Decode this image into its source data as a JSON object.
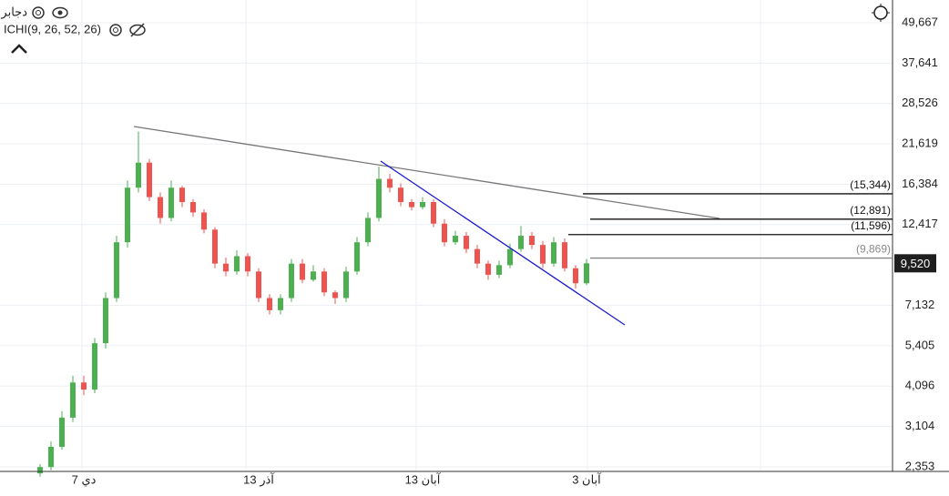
{
  "header": {
    "symbol": "دجابر",
    "indicator": "ICHI(9, 26, 52, 26)"
  },
  "chart_data": {
    "type": "candlestick",
    "log_scale": true,
    "grid": true,
    "up_color": "#4caf50",
    "down_color": "#ef5350",
    "categories": [
      null,
      null,
      null,
      null,
      "دي 7",
      null,
      null,
      null,
      null,
      null,
      null,
      null,
      null,
      null,
      null,
      null,
      null,
      null,
      null,
      null,
      "آذر 13",
      null,
      null,
      null,
      null,
      null,
      null,
      null,
      null,
      null,
      null,
      null,
      null,
      null,
      null,
      "آبان 13",
      null,
      null,
      null,
      null,
      null,
      null,
      null,
      null,
      null,
      null,
      null,
      null,
      null,
      null,
      "آبان 3"
    ],
    "open": [
      2250,
      2350,
      2700,
      3300,
      4200,
      4000,
      5500,
      7500,
      11000,
      16000,
      19000,
      15000,
      13000,
      16000,
      14500,
      13500,
      12000,
      9500,
      9000,
      10000,
      9000,
      7500,
      6900,
      7500,
      9500,
      8500,
      9000,
      7800,
      7500,
      9000,
      11000,
      13000,
      17000,
      16000,
      14500,
      14000,
      14500,
      12500,
      11000,
      11500,
      10500,
      9500,
      8800,
      9400,
      10500,
      11500,
      10800,
      9500,
      11000,
      9200,
      8300
    ],
    "high": [
      2400,
      2800,
      3450,
      4400,
      4400,
      5700,
      7800,
      11500,
      16800,
      23500,
      19500,
      15500,
      16800,
      16200,
      14800,
      13800,
      12200,
      9900,
      10400,
      10200,
      9200,
      7700,
      7700,
      9800,
      9800,
      9400,
      9200,
      7900,
      9300,
      11400,
      13500,
      18500,
      17600,
      16500,
      14800,
      15000,
      14800,
      12900,
      11900,
      11800,
      10800,
      9700,
      9700,
      10900,
      12300,
      11800,
      11100,
      11400,
      11300,
      9400,
      9800
    ],
    "low": [
      2200,
      2300,
      2650,
      3200,
      3850,
      3900,
      5300,
      7300,
      10600,
      15500,
      14600,
      12500,
      12700,
      14000,
      13100,
      11700,
      9200,
      8700,
      8800,
      8700,
      7300,
      6700,
      6700,
      7300,
      8300,
      8400,
      7600,
      7200,
      7300,
      8800,
      10700,
      12700,
      15500,
      14100,
      13700,
      13800,
      12200,
      10700,
      10800,
      10200,
      9200,
      8500,
      8600,
      9200,
      10300,
      10500,
      9200,
      9300,
      9000,
      8000,
      8200
    ],
    "close": [
      2350,
      2700,
      3300,
      4200,
      4000,
      5500,
      7500,
      11000,
      16000,
      19000,
      15000,
      13000,
      16000,
      14500,
      13500,
      12000,
      9500,
      9000,
      10000,
      9000,
      7500,
      6900,
      7500,
      9500,
      8500,
      9000,
      7800,
      7500,
      9000,
      11000,
      13000,
      17000,
      16000,
      14500,
      14000,
      14500,
      12500,
      11000,
      11500,
      10500,
      9500,
      8800,
      9400,
      10500,
      11500,
      10800,
      9500,
      11000,
      9200,
      8300,
      9520
    ],
    "ylim": [
      2252,
      58060
    ],
    "yticks": [
      {
        "value": 2353,
        "label": "2,353"
      },
      {
        "value": 3104,
        "label": "3,104"
      },
      {
        "value": 4096,
        "label": "4,096"
      },
      {
        "value": 5405,
        "label": "5,405"
      },
      {
        "value": 7132,
        "label": "7,132"
      },
      {
        "value": 12417,
        "label": "12,417"
      },
      {
        "value": 16384,
        "label": "16,384"
      },
      {
        "value": 21619,
        "label": "21,619"
      },
      {
        "value": 28526,
        "label": "28,526"
      },
      {
        "value": 37641,
        "label": "37,641"
      },
      {
        "value": 49667,
        "label": "49,667"
      }
    ],
    "last_price": {
      "value": 9520,
      "label": "9,520"
    },
    "levels": [
      {
        "value": 15344,
        "label": "(15,344)",
        "color": "#111111"
      },
      {
        "value": 12891,
        "label": "(12,891)",
        "color": "#111111"
      },
      {
        "value": 11596,
        "label": "(11,596)",
        "color": "#111111"
      },
      {
        "value": 9869,
        "label": "(9,869)",
        "color": "#888888"
      }
    ]
  }
}
